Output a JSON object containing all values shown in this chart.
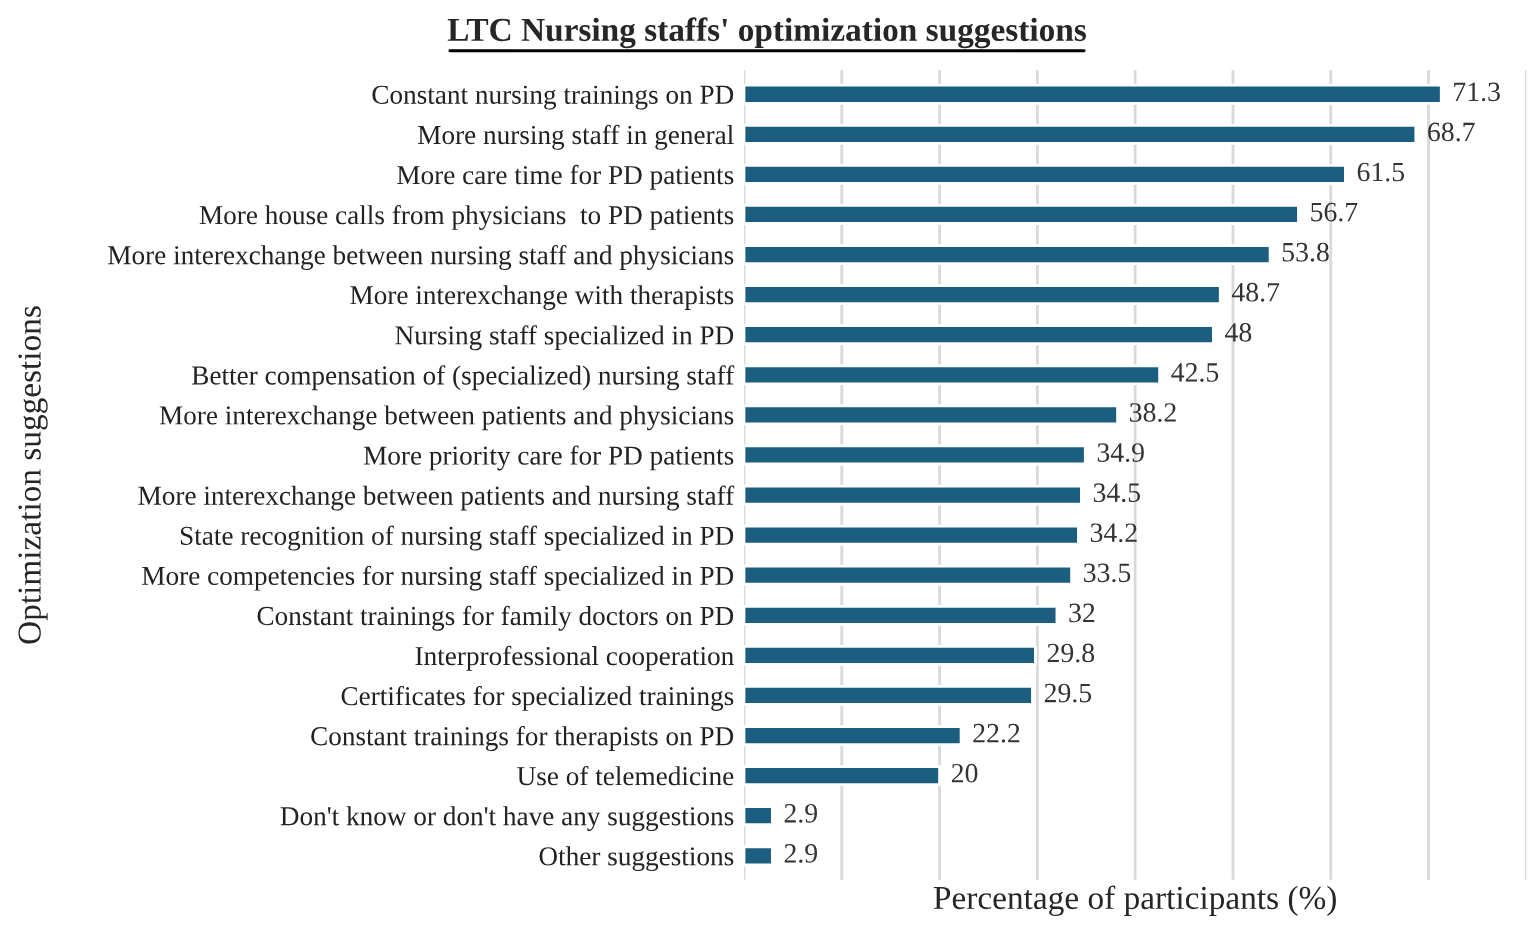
{
  "chart_data": {
    "type": "bar",
    "orientation": "horizontal",
    "title": "LTC Nursing staffs' optimization suggestions",
    "xlabel": "Percentage of participants (%)",
    "ylabel": "Optimization suggestions",
    "categories": [
      "Constant nursing trainings on PD",
      "More nursing staff in general",
      "More care time for PD patients",
      "More house calls from physicians  to PD patients",
      "More interexchange between nursing staff and physicians",
      "More interexchange with therapists",
      "Nursing staff specialized in PD",
      "Better compensation of (specialized) nursing staff",
      "More interexchange between patients and physicians",
      "More priority care for PD patients",
      "More interexchange between patients and nursing staff",
      "State recognition of nursing staff specialized in PD",
      "More competencies for nursing staff specialized in PD",
      "Constant trainings for family doctors on PD",
      "Interprofessional cooperation",
      "Certificates for specialized trainings",
      "Constant trainings for therapists on PD",
      "Use of telemedicine",
      "Don't know or don't have any suggestions",
      "Other suggestions"
    ],
    "values": [
      71.3,
      68.7,
      61.5,
      56.7,
      53.8,
      48.7,
      48,
      42.5,
      38.2,
      34.9,
      34.5,
      34.2,
      33.5,
      32,
      29.8,
      29.5,
      22.2,
      20,
      2.9,
      2.9
    ],
    "color": "#1b5e80",
    "data_labels": true,
    "xlim": [
      0,
      80
    ],
    "xticks": [
      {
        "value": 0,
        "label": null
      },
      {
        "value": 10,
        "label": null
      },
      {
        "value": 20,
        "label": null
      },
      {
        "value": 30,
        "label": null
      },
      {
        "value": 40,
        "label": null
      },
      {
        "value": 50,
        "label": null
      },
      {
        "value": 60,
        "label": null
      },
      {
        "value": 70,
        "label": null
      },
      {
        "value": 80,
        "label": null
      }
    ],
    "tick_labels": "y",
    "grid": "x"
  }
}
